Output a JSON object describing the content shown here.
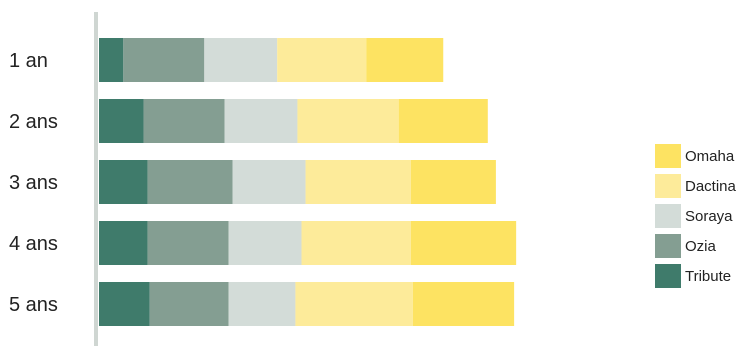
{
  "chart_data": {
    "type": "bar",
    "orientation": "horizontal",
    "stacked": true,
    "title": "",
    "xlabel": "",
    "ylabel": "",
    "categories": [
      "1 an",
      "2 ans",
      "3 ans",
      "4 ans",
      "5 ans"
    ],
    "series": [
      {
        "name": "Tribute",
        "color": "#3f7b6b",
        "values": [
          6,
          11,
          12,
          12,
          12.5
        ]
      },
      {
        "name": "Ozia",
        "color": "#849e92",
        "values": [
          20,
          20,
          21,
          20,
          19.5
        ]
      },
      {
        "name": "Soraya",
        "color": "#d3dcd8",
        "values": [
          18,
          18,
          18,
          18,
          16.5
        ]
      },
      {
        "name": "Dactina",
        "color": "#fdeb9a",
        "values": [
          22,
          25,
          26,
          27,
          29
        ]
      },
      {
        "name": "Omaha",
        "color": "#fde362",
        "values": [
          19,
          22,
          21,
          26,
          25
        ]
      }
    ],
    "legend_order": [
      "Omaha",
      "Dactina",
      "Soraya",
      "Ozia",
      "Tribute"
    ],
    "legend_position": "right",
    "grid": false
  }
}
